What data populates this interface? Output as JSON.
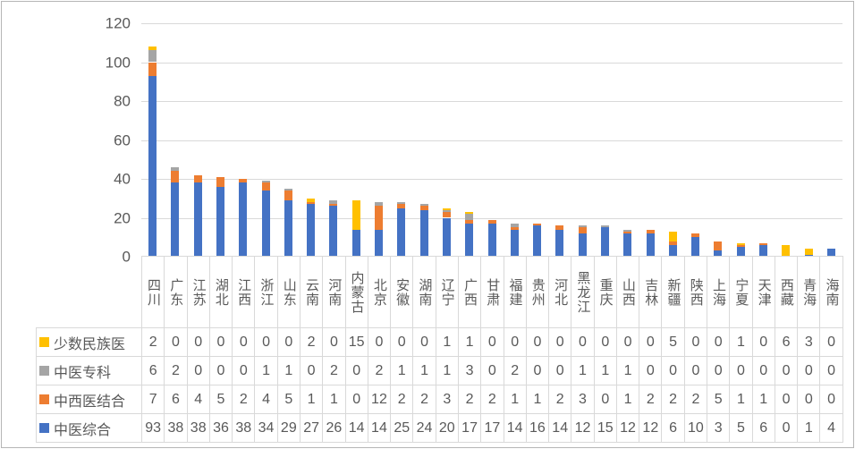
{
  "chart_data": {
    "type": "bar",
    "stacked": true,
    "title": "",
    "xlabel": "",
    "ylabel": "",
    "ylim": [
      0,
      120
    ],
    "y_ticks": [
      0,
      20,
      40,
      60,
      80,
      100,
      120
    ],
    "grid": true,
    "legend_position": "data-table-left",
    "categories": [
      "四川",
      "广东",
      "江苏",
      "湖北",
      "江西",
      "浙江",
      "山东",
      "云南",
      "河南",
      "内蒙古",
      "北京",
      "安徽",
      "湖南",
      "辽宁",
      "广西",
      "甘肃",
      "福建",
      "贵州",
      "河北",
      "黑龙江",
      "重庆",
      "山西",
      "吉林",
      "新疆",
      "陕西",
      "上海",
      "宁夏",
      "天津",
      "西藏",
      "青海",
      "海南"
    ],
    "series": [
      {
        "name": "中医综合",
        "color": "#4472C4",
        "values": [
          93,
          38,
          38,
          36,
          38,
          34,
          29,
          27,
          26,
          14,
          14,
          25,
          24,
          20,
          17,
          17,
          14,
          16,
          14,
          12,
          15,
          12,
          12,
          6,
          10,
          3,
          5,
          6,
          0,
          1,
          4
        ]
      },
      {
        "name": "中西医结合",
        "color": "#ED7D31",
        "values": [
          7,
          6,
          4,
          5,
          2,
          4,
          5,
          1,
          1,
          0,
          12,
          2,
          2,
          3,
          2,
          2,
          1,
          1,
          2,
          3,
          0,
          1,
          2,
          2,
          2,
          5,
          1,
          1,
          0,
          0,
          0
        ]
      },
      {
        "name": "中医专科",
        "color": "#A5A5A5",
        "values": [
          6,
          2,
          0,
          0,
          0,
          1,
          1,
          0,
          2,
          0,
          2,
          1,
          1,
          1,
          3,
          0,
          2,
          0,
          0,
          1,
          1,
          1,
          0,
          0,
          0,
          0,
          0,
          0,
          0,
          0,
          0
        ]
      },
      {
        "name": "少数民族医",
        "color": "#FFC000",
        "values": [
          2,
          0,
          0,
          0,
          0,
          0,
          0,
          2,
          0,
          15,
          0,
          0,
          0,
          1,
          1,
          0,
          0,
          0,
          0,
          0,
          0,
          0,
          0,
          5,
          0,
          0,
          1,
          0,
          6,
          3,
          0
        ]
      }
    ],
    "data_table_row_order": [
      "少数民族医",
      "中医专科",
      "中西医结合",
      "中医综合"
    ]
  },
  "style_colors": {
    "gridline": "#d9d9d9",
    "table_border": "#d9d9d9",
    "text": "#595959",
    "frame_border": "#b5b5b5",
    "background": "#ffffff"
  }
}
